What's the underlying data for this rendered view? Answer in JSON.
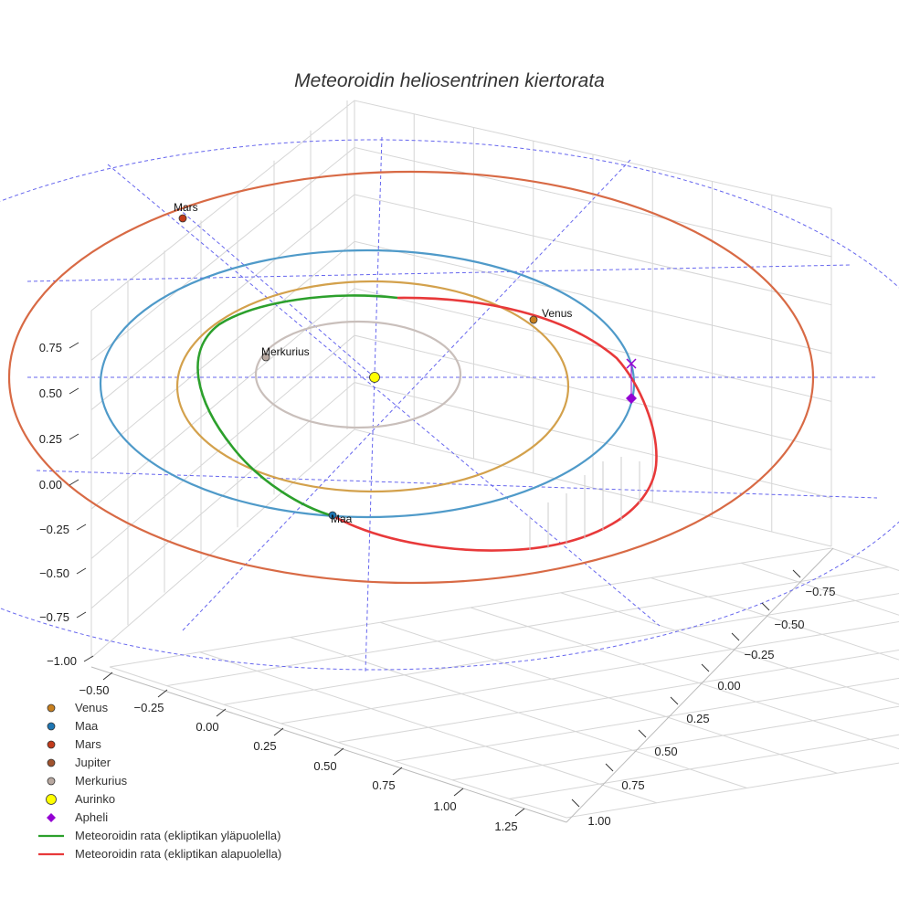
{
  "chart_data": {
    "type": "scatter3d",
    "title": "Meteoroidin heliosentrinen kiertorata",
    "axes": {
      "x": {
        "ticks": [
          "−0.50",
          "−0.25",
          "0.00",
          "0.25",
          "0.50",
          "0.75",
          "1.00",
          "1.25"
        ],
        "range": [
          -0.6,
          1.3
        ]
      },
      "y": {
        "ticks": [
          "−0.75",
          "−0.50",
          "−0.25",
          "0.00",
          "0.25",
          "0.50",
          "0.75",
          "1.00"
        ],
        "range": [
          -0.85,
          1.05
        ]
      },
      "z": {
        "ticks": [
          "0.75",
          "0.50",
          "0.25",
          "0.00",
          "−0.25",
          "−0.50",
          "−0.75",
          "−1.00"
        ],
        "range": [
          -1.05,
          0.85
        ]
      },
      "grid": true
    },
    "planets": [
      {
        "name": "Venus",
        "label": "Venus",
        "color": "#c8801f",
        "orbit_color": "#d3a14c"
      },
      {
        "name": "Maa",
        "label": "Maa",
        "color": "#1f77b4",
        "orbit_color": "#4f9ac9"
      },
      {
        "name": "Mars",
        "label": "Mars",
        "color": "#c23b1c",
        "orbit_color": "#d86a45"
      },
      {
        "name": "Jupiter",
        "label": "",
        "color": "#a0522d",
        "orbit_color": "#6666ee"
      },
      {
        "name": "Merkurius",
        "label": "Merkurius",
        "color": "#b8a8a0",
        "orbit_color": "#c9bfbb"
      }
    ],
    "sun": {
      "name": "Aurinko",
      "color": "#ffff00"
    },
    "aphelion": {
      "name": "Apheli",
      "color": "#9400d3",
      "marker": "diamond"
    },
    "meteoroid_orbit": [
      {
        "name": "Meteoroidin rata (ekliptikan yläpuolella)",
        "color": "#2ca02c"
      },
      {
        "name": "Meteoroidin rata (ekliptikan alapuolella)",
        "color": "#e8393a"
      }
    ],
    "legend": {
      "position": "bottom-left",
      "entries": [
        {
          "name": "Venus",
          "symbol": "circle",
          "color": "#c8801f"
        },
        {
          "name": "Maa",
          "symbol": "circle",
          "color": "#1f77b4"
        },
        {
          "name": "Mars",
          "symbol": "circle",
          "color": "#c23b1c"
        },
        {
          "name": "Jupiter",
          "symbol": "circle",
          "color": "#a0522d"
        },
        {
          "name": "Merkurius",
          "symbol": "circle",
          "color": "#b8a8a0"
        },
        {
          "name": "Aurinko",
          "symbol": "circle-large",
          "color": "#ffff00"
        },
        {
          "name": "Apheli",
          "symbol": "diamond",
          "color": "#9400d3"
        },
        {
          "name": "Meteoroidin rata (ekliptikan yläpuolella)",
          "symbol": "line",
          "color": "#2ca02c"
        },
        {
          "name": "Meteoroidin rata (ekliptikan alapuolella)",
          "symbol": "line",
          "color": "#e8393a"
        }
      ]
    }
  }
}
